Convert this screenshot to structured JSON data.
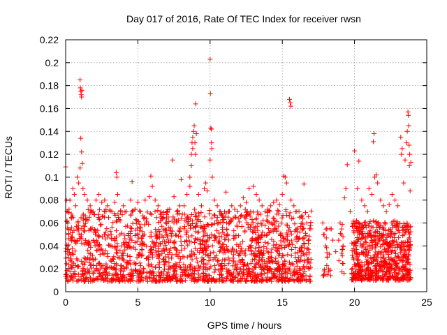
{
  "chart_data": {
    "type": "scatter",
    "title": "Day 017 of 2016, Rate Of TEC Index for receiver rwsn",
    "xlabel": "GPS time / hours",
    "ylabel": "ROTI / TECUs",
    "xlim": [
      0,
      25
    ],
    "ylim": [
      0,
      0.22
    ],
    "xticks": [
      0,
      5,
      10,
      15,
      20,
      25
    ],
    "xtick_labels": [
      "0",
      "5",
      "10",
      "15",
      "20",
      "25"
    ],
    "yticks": [
      0,
      0.02,
      0.04,
      0.06,
      0.08,
      0.1,
      0.12,
      0.14,
      0.16,
      0.18,
      0.2,
      0.22
    ],
    "ytick_labels": [
      "0",
      "0.02",
      "0.04",
      "0.06",
      "0.08",
      "0.1",
      "0.12",
      "0.14",
      "0.16",
      "0.18",
      "0.2",
      "0.22"
    ],
    "grid": true,
    "marker": "+",
    "marker_color": "#ff0000",
    "series": [
      {
        "name": "ROTI",
        "points": [
          [
            0.0,
            0.109
          ],
          [
            0.05,
            0.08
          ],
          [
            0.1,
            0.07
          ],
          [
            0.15,
            0.06
          ],
          [
            0.2,
            0.05
          ],
          [
            0.3,
            0.08
          ],
          [
            0.4,
            0.065
          ],
          [
            0.5,
            0.09
          ],
          [
            0.6,
            0.085
          ],
          [
            0.7,
            0.075
          ],
          [
            0.8,
            0.1
          ],
          [
            0.9,
            0.095
          ],
          [
            1.0,
            0.185
          ],
          [
            1.02,
            0.178
          ],
          [
            1.05,
            0.175
          ],
          [
            1.08,
            0.172
          ],
          [
            1.1,
            0.17
          ],
          [
            1.12,
            0.176
          ],
          [
            1.05,
            0.134
          ],
          [
            1.1,
            0.122
          ],
          [
            1.0,
            0.108
          ],
          [
            1.15,
            0.112
          ],
          [
            1.2,
            0.09
          ],
          [
            1.3,
            0.085
          ],
          [
            1.5,
            0.08
          ],
          [
            1.7,
            0.075
          ],
          [
            1.9,
            0.07
          ],
          [
            2.1,
            0.08
          ],
          [
            2.3,
            0.085
          ],
          [
            2.5,
            0.078
          ],
          [
            2.7,
            0.08
          ],
          [
            2.9,
            0.075
          ],
          [
            3.2,
            0.07
          ],
          [
            3.4,
            0.078
          ],
          [
            3.5,
            0.104
          ],
          [
            3.55,
            0.1
          ],
          [
            3.6,
            0.085
          ],
          [
            3.8,
            0.07
          ],
          [
            4.0,
            0.075
          ],
          [
            4.2,
            0.07
          ],
          [
            4.5,
            0.08
          ],
          [
            4.6,
            0.096
          ],
          [
            4.8,
            0.072
          ],
          [
            5.0,
            0.078
          ],
          [
            5.2,
            0.07
          ],
          [
            5.5,
            0.08
          ],
          [
            5.8,
            0.083
          ],
          [
            5.9,
            0.101
          ],
          [
            6.0,
            0.092
          ],
          [
            6.2,
            0.08
          ],
          [
            6.4,
            0.075
          ],
          [
            6.6,
            0.07
          ],
          [
            6.8,
            0.065
          ],
          [
            7.0,
            0.07
          ],
          [
            7.2,
            0.072
          ],
          [
            7.5,
            0.06
          ],
          [
            7.4,
            0.115
          ],
          [
            7.5,
            0.083
          ],
          [
            7.7,
            0.07
          ],
          [
            7.9,
            0.075
          ],
          [
            8.0,
            0.098
          ],
          [
            8.2,
            0.075
          ],
          [
            8.4,
            0.085
          ],
          [
            8.6,
            0.092
          ],
          [
            8.6,
            0.1
          ],
          [
            8.7,
            0.12
          ],
          [
            8.75,
            0.13
          ],
          [
            8.8,
            0.135
          ],
          [
            8.85,
            0.14
          ],
          [
            8.9,
            0.145
          ],
          [
            8.95,
            0.13
          ],
          [
            9.0,
            0.12
          ],
          [
            8.8,
            0.125
          ],
          [
            9.0,
            0.164
          ],
          [
            8.7,
            0.11
          ],
          [
            9.05,
            0.138
          ],
          [
            9.2,
            0.085
          ],
          [
            9.4,
            0.075
          ],
          [
            9.6,
            0.09
          ],
          [
            9.7,
            0.095
          ],
          [
            9.8,
            0.088
          ],
          [
            10.0,
            0.203
          ],
          [
            10.02,
            0.173
          ],
          [
            10.05,
            0.143
          ],
          [
            10.08,
            0.142
          ],
          [
            10.1,
            0.13
          ],
          [
            10.12,
            0.125
          ],
          [
            10.0,
            0.115
          ],
          [
            10.15,
            0.1
          ],
          [
            10.3,
            0.08
          ],
          [
            10.5,
            0.075
          ],
          [
            10.7,
            0.07
          ],
          [
            10.9,
            0.065
          ],
          [
            11.1,
            0.087
          ],
          [
            11.3,
            0.07
          ],
          [
            11.5,
            0.075
          ],
          [
            11.7,
            0.072
          ],
          [
            11.9,
            0.07
          ],
          [
            12.1,
            0.075
          ],
          [
            12.3,
            0.082
          ],
          [
            12.5,
            0.078
          ],
          [
            12.7,
            0.09
          ],
          [
            13.0,
            0.092
          ],
          [
            13.2,
            0.085
          ],
          [
            13.4,
            0.08
          ],
          [
            13.6,
            0.075
          ],
          [
            13.8,
            0.07
          ],
          [
            14.0,
            0.072
          ],
          [
            14.2,
            0.075
          ],
          [
            14.4,
            0.078
          ],
          [
            14.6,
            0.08
          ],
          [
            14.8,
            0.076
          ],
          [
            15.0,
            0.085
          ],
          [
            15.1,
            0.101
          ],
          [
            15.2,
            0.1
          ],
          [
            15.3,
            0.095
          ],
          [
            15.5,
            0.168
          ],
          [
            15.55,
            0.165
          ],
          [
            15.6,
            0.162
          ],
          [
            15.6,
            0.08
          ],
          [
            15.8,
            0.075
          ],
          [
            16.0,
            0.07
          ],
          [
            16.2,
            0.065
          ],
          [
            16.5,
            0.094
          ],
          [
            16.7,
            0.06
          ],
          [
            16.9,
            0.055
          ],
          [
            17.8,
            0.06
          ],
          [
            17.9,
            0.05
          ],
          [
            18.0,
            0.04
          ],
          [
            18.1,
            0.03
          ],
          [
            18.2,
            0.02
          ],
          [
            18.3,
            0.055
          ],
          [
            18.5,
            0.045
          ],
          [
            18.7,
            0.035
          ],
          [
            18.9,
            0.045
          ],
          [
            19.0,
            0.06
          ],
          [
            19.2,
            0.04
          ],
          [
            19.3,
            0.082
          ],
          [
            19.4,
            0.09
          ],
          [
            19.5,
            0.111
          ],
          [
            19.7,
            0.07
          ],
          [
            19.9,
            0.06
          ],
          [
            20.0,
            0.123
          ],
          [
            20.2,
            0.09
          ],
          [
            20.3,
            0.114
          ],
          [
            20.5,
            0.08
          ],
          [
            20.7,
            0.075
          ],
          [
            20.9,
            0.07
          ],
          [
            21.0,
            0.09
          ],
          [
            21.2,
            0.085
          ],
          [
            21.3,
            0.131
          ],
          [
            21.35,
            0.138
          ],
          [
            21.4,
            0.1
          ],
          [
            21.5,
            0.102
          ],
          [
            21.6,
            0.095
          ],
          [
            21.8,
            0.08
          ],
          [
            22.0,
            0.075
          ],
          [
            22.2,
            0.07
          ],
          [
            22.4,
            0.076
          ],
          [
            22.6,
            0.085
          ],
          [
            22.8,
            0.08
          ],
          [
            23.0,
            0.075
          ],
          [
            23.2,
            0.135
          ],
          [
            23.25,
            0.12
          ],
          [
            23.3,
            0.125
          ],
          [
            23.4,
            0.095
          ],
          [
            23.5,
            0.115
          ],
          [
            23.6,
            0.13
          ],
          [
            23.65,
            0.14
          ],
          [
            23.7,
            0.157
          ],
          [
            23.72,
            0.154
          ],
          [
            23.75,
            0.145
          ],
          [
            23.78,
            0.128
          ],
          [
            23.8,
            0.11
          ],
          [
            23.82,
            0.12
          ],
          [
            23.85,
            0.088
          ],
          [
            23.9,
            0.113
          ]
        ]
      }
    ],
    "dense_band": {
      "segments": [
        {
          "x_start": 0.0,
          "x_end": 17.0,
          "y_min": 0.009,
          "y_max": 0.072,
          "density": 1800
        },
        {
          "x_start": 17.8,
          "x_end": 18.4,
          "y_min": 0.014,
          "y_max": 0.055,
          "density": 20
        },
        {
          "x_start": 18.9,
          "x_end": 19.3,
          "y_min": 0.015,
          "y_max": 0.06,
          "density": 15
        },
        {
          "x_start": 19.8,
          "x_end": 23.9,
          "y_min": 0.01,
          "y_max": 0.062,
          "density": 700
        }
      ]
    }
  }
}
